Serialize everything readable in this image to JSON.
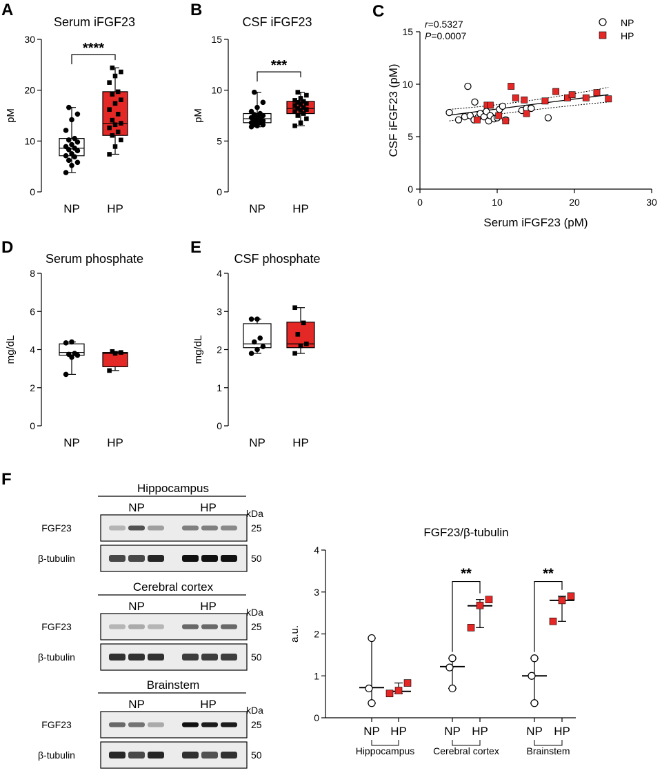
{
  "colors": {
    "hp": "#e32826",
    "np": "#ffffff",
    "ink": "#000000"
  },
  "panels": {
    "A": "A",
    "B": "B",
    "C": "C",
    "D": "D",
    "E": "E",
    "F": "F"
  },
  "chart_data": [
    {
      "id": "A",
      "type": "box",
      "title": "Serum iFGF23",
      "ylabel": "pM",
      "ylim": [
        0,
        30
      ],
      "yticks": [
        0,
        10,
        20,
        30
      ],
      "categories": [
        "NP",
        "HP"
      ],
      "significance": "****",
      "sig_y": 27,
      "groups": [
        {
          "name": "NP",
          "fill": "np",
          "marker": "circle",
          "box": {
            "min": 3.8,
            "q1": 7.1,
            "median": 8.6,
            "q3": 10.5,
            "max": 16.6
          },
          "points": [
            3.8,
            5.2,
            5.8,
            6.2,
            6.9,
            7.1,
            7.5,
            8.1,
            8.3,
            8.6,
            8.9,
            9.3,
            9.8,
            10.2,
            10.5,
            12.1,
            14.2,
            15.3,
            16.6
          ]
        },
        {
          "name": "HP",
          "fill": "hp",
          "marker": "square",
          "box": {
            "min": 7.4,
            "q1": 11.1,
            "median": 13.5,
            "q3": 19.7,
            "max": 24.4
          },
          "points": [
            7.4,
            8.9,
            10.2,
            11.1,
            11.8,
            12.6,
            13.2,
            13.5,
            14.1,
            15.3,
            16.2,
            17.4,
            18.1,
            19.2,
            19.7,
            21.5,
            22.8,
            23.6,
            24.4
          ]
        }
      ]
    },
    {
      "id": "B",
      "type": "box",
      "title": "CSF iFGF23",
      "ylabel": "pM",
      "ylim": [
        0,
        15
      ],
      "yticks": [
        0,
        5,
        10,
        15
      ],
      "categories": [
        "NP",
        "HP"
      ],
      "significance": "***",
      "sig_y": 11.8,
      "groups": [
        {
          "name": "NP",
          "fill": "np",
          "marker": "circle",
          "box": {
            "min": 6.4,
            "q1": 6.8,
            "median": 7.2,
            "q3": 7.7,
            "max": 9.8
          },
          "points": [
            6.4,
            6.5,
            6.6,
            6.7,
            6.8,
            6.8,
            6.9,
            7.0,
            7.1,
            7.2,
            7.3,
            7.4,
            7.5,
            7.6,
            7.7,
            7.9,
            8.3,
            8.8,
            9.8
          ]
        },
        {
          "name": "HP",
          "fill": "hp",
          "marker": "square",
          "box": {
            "min": 6.5,
            "q1": 7.7,
            "median": 8.2,
            "q3": 8.9,
            "max": 9.8
          },
          "points": [
            6.5,
            6.8,
            7.2,
            7.5,
            7.7,
            7.9,
            8.0,
            8.1,
            8.2,
            8.3,
            8.5,
            8.6,
            8.7,
            8.8,
            8.9,
            9.0,
            9.2,
            9.5,
            9.8
          ]
        }
      ]
    },
    {
      "id": "C",
      "type": "scatter",
      "xlabel": "Serum iFGF23 (pM)",
      "ylabel": "CSF iFGF23 (pM)",
      "xlim": [
        0,
        30
      ],
      "ylim": [
        0,
        15
      ],
      "xticks": [
        0,
        10,
        20,
        30
      ],
      "yticks": [
        0,
        5,
        10,
        15
      ],
      "stats": {
        "r_name": "r",
        "r_value": "=0.5327",
        "p_name": "P",
        "p_value": "=0.0007"
      },
      "fit": {
        "x0": 3.8,
        "y0": 7.05,
        "x1": 24.4,
        "y1": 9.0
      },
      "series": [
        {
          "name": "NP",
          "fill": "np",
          "marker": "circle",
          "points": [
            [
              3.8,
              7.3
            ],
            [
              5.0,
              6.6
            ],
            [
              5.8,
              6.9
            ],
            [
              6.2,
              9.8
            ],
            [
              6.5,
              7.0
            ],
            [
              7.0,
              6.6
            ],
            [
              7.1,
              8.3
            ],
            [
              7.5,
              6.8
            ],
            [
              7.8,
              7.2
            ],
            [
              8.3,
              6.9
            ],
            [
              8.6,
              7.4
            ],
            [
              8.9,
              6.5
            ],
            [
              9.1,
              7.0
            ],
            [
              9.6,
              6.7
            ],
            [
              10.0,
              6.8
            ],
            [
              10.3,
              7.6
            ],
            [
              10.7,
              7.9
            ],
            [
              11.1,
              6.6
            ],
            [
              13.2,
              7.5
            ],
            [
              13.8,
              7.7
            ],
            [
              14.4,
              7.7
            ],
            [
              16.6,
              6.8
            ]
          ]
        },
        {
          "name": "HP",
          "fill": "hp",
          "marker": "square",
          "points": [
            [
              7.4,
              6.6
            ],
            [
              8.7,
              8.0
            ],
            [
              9.1,
              8.0
            ],
            [
              10.2,
              7.0
            ],
            [
              11.1,
              6.5
            ],
            [
              11.8,
              9.8
            ],
            [
              12.4,
              8.7
            ],
            [
              13.5,
              8.5
            ],
            [
              13.8,
              7.2
            ],
            [
              16.2,
              8.4
            ],
            [
              17.6,
              9.3
            ],
            [
              19.1,
              8.7
            ],
            [
              19.7,
              9.0
            ],
            [
              21.5,
              8.7
            ],
            [
              22.9,
              9.2
            ],
            [
              24.4,
              8.6
            ]
          ]
        }
      ]
    },
    {
      "id": "D",
      "type": "box",
      "title": "Serum phosphate",
      "ylabel": "mg/dL",
      "ylim": [
        0,
        8
      ],
      "yticks": [
        0,
        2,
        4,
        6,
        8
      ],
      "categories": [
        "NP",
        "HP"
      ],
      "groups": [
        {
          "name": "NP",
          "fill": "np",
          "marker": "circle",
          "box": {
            "min": 2.7,
            "q1": 3.7,
            "median": 3.85,
            "q3": 4.3,
            "max": 4.4
          },
          "points": [
            2.7,
            3.6,
            3.7,
            3.75,
            3.8,
            4.35,
            4.4
          ]
        },
        {
          "name": "HP",
          "fill": "hp",
          "marker": "square",
          "box": {
            "min": 2.9,
            "q1": 3.1,
            "median": 3.8,
            "q3": 3.85,
            "max": 3.9
          },
          "points": [
            2.9,
            3.8,
            3.85,
            3.9
          ]
        }
      ]
    },
    {
      "id": "E",
      "type": "box",
      "title": "CSF phosphate",
      "ylabel": "mg/dL",
      "ylim": [
        0,
        4
      ],
      "yticks": [
        0,
        1,
        2,
        3,
        4
      ],
      "categories": [
        "NP",
        "HP"
      ],
      "groups": [
        {
          "name": "NP",
          "fill": "np",
          "marker": "circle",
          "box": {
            "min": 1.9,
            "q1": 2.05,
            "median": 2.15,
            "q3": 2.68,
            "max": 2.8
          },
          "points": [
            1.9,
            2.0,
            2.08,
            2.2,
            2.3,
            2.8,
            2.8
          ]
        },
        {
          "name": "HP",
          "fill": "hp",
          "marker": "square",
          "box": {
            "min": 1.9,
            "q1": 2.05,
            "median": 2.15,
            "q3": 2.72,
            "max": 3.1
          },
          "points": [
            1.9,
            2.1,
            2.15,
            2.4,
            2.7,
            3.1
          ]
        }
      ]
    },
    {
      "id": "F-chart",
      "type": "scatter",
      "title": "FGF23/β-tubulin",
      "ylabel": "a.u.",
      "ylim": [
        0,
        4
      ],
      "yticks": [
        0,
        1,
        2,
        3,
        4
      ],
      "regions": [
        {
          "name": "Hippocampus",
          "NP": {
            "points": [
              0.35,
              0.7,
              1.9
            ],
            "center": 0.72,
            "min": 0.35,
            "max": 1.9
          },
          "HP": {
            "points": [
              0.58,
              0.65,
              0.83
            ],
            "center": 0.63,
            "min": 0.58,
            "max": 0.83
          }
        },
        {
          "name": "Cerebral cortex",
          "significance": "**",
          "NP": {
            "points": [
              0.7,
              1.2,
              1.42
            ],
            "center": 1.22,
            "min": 0.7,
            "max": 1.42
          },
          "HP": {
            "points": [
              2.15,
              2.68,
              2.82
            ],
            "center": 2.67,
            "min": 2.15,
            "max": 2.82
          }
        },
        {
          "name": "Brainstem",
          "significance": "**",
          "NP": {
            "points": [
              0.35,
              1.0,
              1.42
            ],
            "center": 1.0,
            "min": 0.35,
            "max": 1.42
          },
          "HP": {
            "points": [
              2.3,
              2.8,
              2.9
            ],
            "center": 2.8,
            "min": 2.3,
            "max": 2.9
          }
        }
      ],
      "categories": [
        "NP",
        "HP"
      ]
    }
  ],
  "blots": {
    "kda": "kDa",
    "groups": [
      "NP",
      "HP"
    ],
    "rows": [
      {
        "name": "FGF23",
        "kda": "25"
      },
      {
        "name": "β-tubulin",
        "kda": "50"
      }
    ],
    "tissues": [
      {
        "name": "Hippocampus",
        "fgf23": [
          0.25,
          0.7,
          0.35,
          0.5,
          0.5,
          0.45
        ],
        "tubulin": [
          0.75,
          0.75,
          0.9,
          1,
          1,
          1
        ]
      },
      {
        "name": "Cerebral cortex",
        "fgf23": [
          0.25,
          0.3,
          0.25,
          0.6,
          0.6,
          0.6
        ],
        "tubulin": [
          0.85,
          0.85,
          0.85,
          0.8,
          0.8,
          0.8
        ]
      },
      {
        "name": "Brainstem",
        "fgf23": [
          0.6,
          0.55,
          0.3,
          1,
          0.95,
          0.95
        ],
        "tubulin": [
          0.9,
          0.75,
          0.9,
          0.85,
          0.7,
          0.85
        ]
      }
    ]
  }
}
